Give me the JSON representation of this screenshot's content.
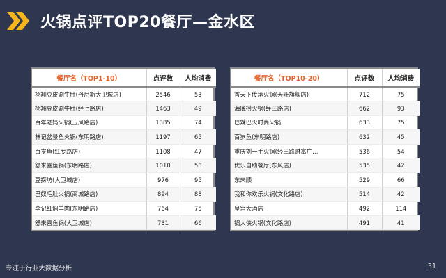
{
  "title": "火锅点评TOP20餐厅—金水区",
  "accent_color": "#f5b51b",
  "left_table": {
    "headers": [
      "餐厅名（TOP1-10）",
      "点评数",
      "人均消费"
    ],
    "rows": [
      {
        "name": "杨翔豆皮涮牛肚(丹尼斯大卫城店)",
        "reviews": "2546",
        "avg": "53"
      },
      {
        "name": "杨翔豆皮涮牛肚(经七路店)",
        "reviews": "1463",
        "avg": "49"
      },
      {
        "name": "百年老妈火锅(玉凤路店)",
        "reviews": "1385",
        "avg": "74"
      },
      {
        "name": "林记盆景鱼火锅(东明路店)",
        "reviews": "1197",
        "avg": "65"
      },
      {
        "name": "百岁鱼(红专路店)",
        "reviews": "1108",
        "avg": "47"
      },
      {
        "name": "舒来喜鱼锅(东明路店)",
        "reviews": "1010",
        "avg": "58"
      },
      {
        "name": "豆捞坊(大卫城店)",
        "reviews": "976",
        "avg": "95"
      },
      {
        "name": "巴奴毛肚火锅(商城路店)",
        "reviews": "894",
        "avg": "88"
      },
      {
        "name": "李记红焖羊肉(东明路店)",
        "reviews": "764",
        "avg": "75"
      },
      {
        "name": "舒来喜鱼锅(大卫城店)",
        "reviews": "731",
        "avg": "66"
      }
    ]
  },
  "right_table": {
    "headers": [
      "餐厅名（TOP10-20）",
      "点评数",
      "人均消费"
    ],
    "rows": [
      {
        "name": "香天下传承火锅(天旺旗舰店)",
        "reviews": "712",
        "avg": "75"
      },
      {
        "name": "海底捞火锅(经三路店)",
        "reviews": "662",
        "avg": "93"
      },
      {
        "name": "巴辣巴火时尚火锅",
        "reviews": "633",
        "avg": "75"
      },
      {
        "name": "百岁鱼(东明路店)",
        "reviews": "632",
        "avg": "45"
      },
      {
        "name": "重庆刘一手火锅(经三路财富广…",
        "reviews": "536",
        "avg": "54"
      },
      {
        "name": "优乐自助餐厅(东风店)",
        "reviews": "535",
        "avg": "42"
      },
      {
        "name": "东来顺",
        "reviews": "529",
        "avg": "66"
      },
      {
        "name": "我和你欢乐火锅(文化路店)",
        "reviews": "514",
        "avg": "42"
      },
      {
        "name": "皇宫大酒店",
        "reviews": "492",
        "avg": "114"
      },
      {
        "name": "锅大侠火锅(文化路店)",
        "reviews": "491",
        "avg": "41"
      }
    ]
  },
  "footer": {
    "tagline": "专注于行业大数据分析",
    "page": "31"
  }
}
